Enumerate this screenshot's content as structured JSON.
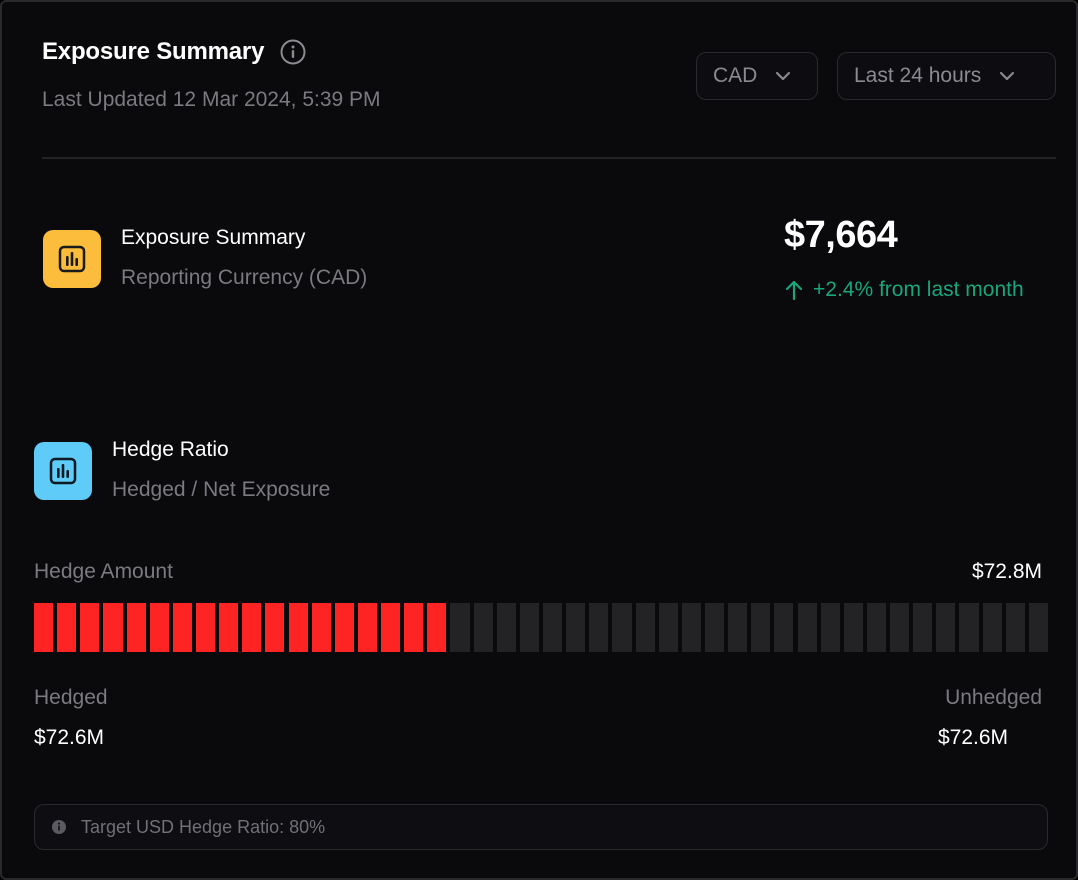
{
  "header": {
    "title": "Exposure Summary",
    "last_updated": "Last Updated 12 Mar 2024, 5:39 PM",
    "currency_dropdown": "CAD",
    "range_dropdown": "Last 24 hours"
  },
  "exposure": {
    "title": "Exposure Summary",
    "subtitle": "Reporting Currency (CAD)",
    "value": "$7,664",
    "change": "+2.4% from last month"
  },
  "hedge": {
    "title": "Hedge Ratio",
    "subtitle": "Hedged / Net Exposure",
    "amount_label": "Hedge Amount",
    "amount_value": "$72.8M",
    "segments_total": 44,
    "segments_filled": 18,
    "hedged_label": "Hedged",
    "hedged_value": "$72.6M",
    "unhedged_label": "Unhedged",
    "unhedged_value": "$72.6M",
    "target_note": "Target USD Hedge Ratio: 80%"
  },
  "colors": {
    "accent_yellow": "#fbbd3b",
    "accent_blue": "#5ecbf8",
    "positive_green": "#18a77b",
    "hedged_red": "#ff2424",
    "unhedged_gray": "#232326"
  },
  "icons": {
    "info": "info-icon",
    "chevron": "chevron-down-icon",
    "chart": "bar-chart-icon",
    "arrow_up": "arrow-up-icon"
  }
}
